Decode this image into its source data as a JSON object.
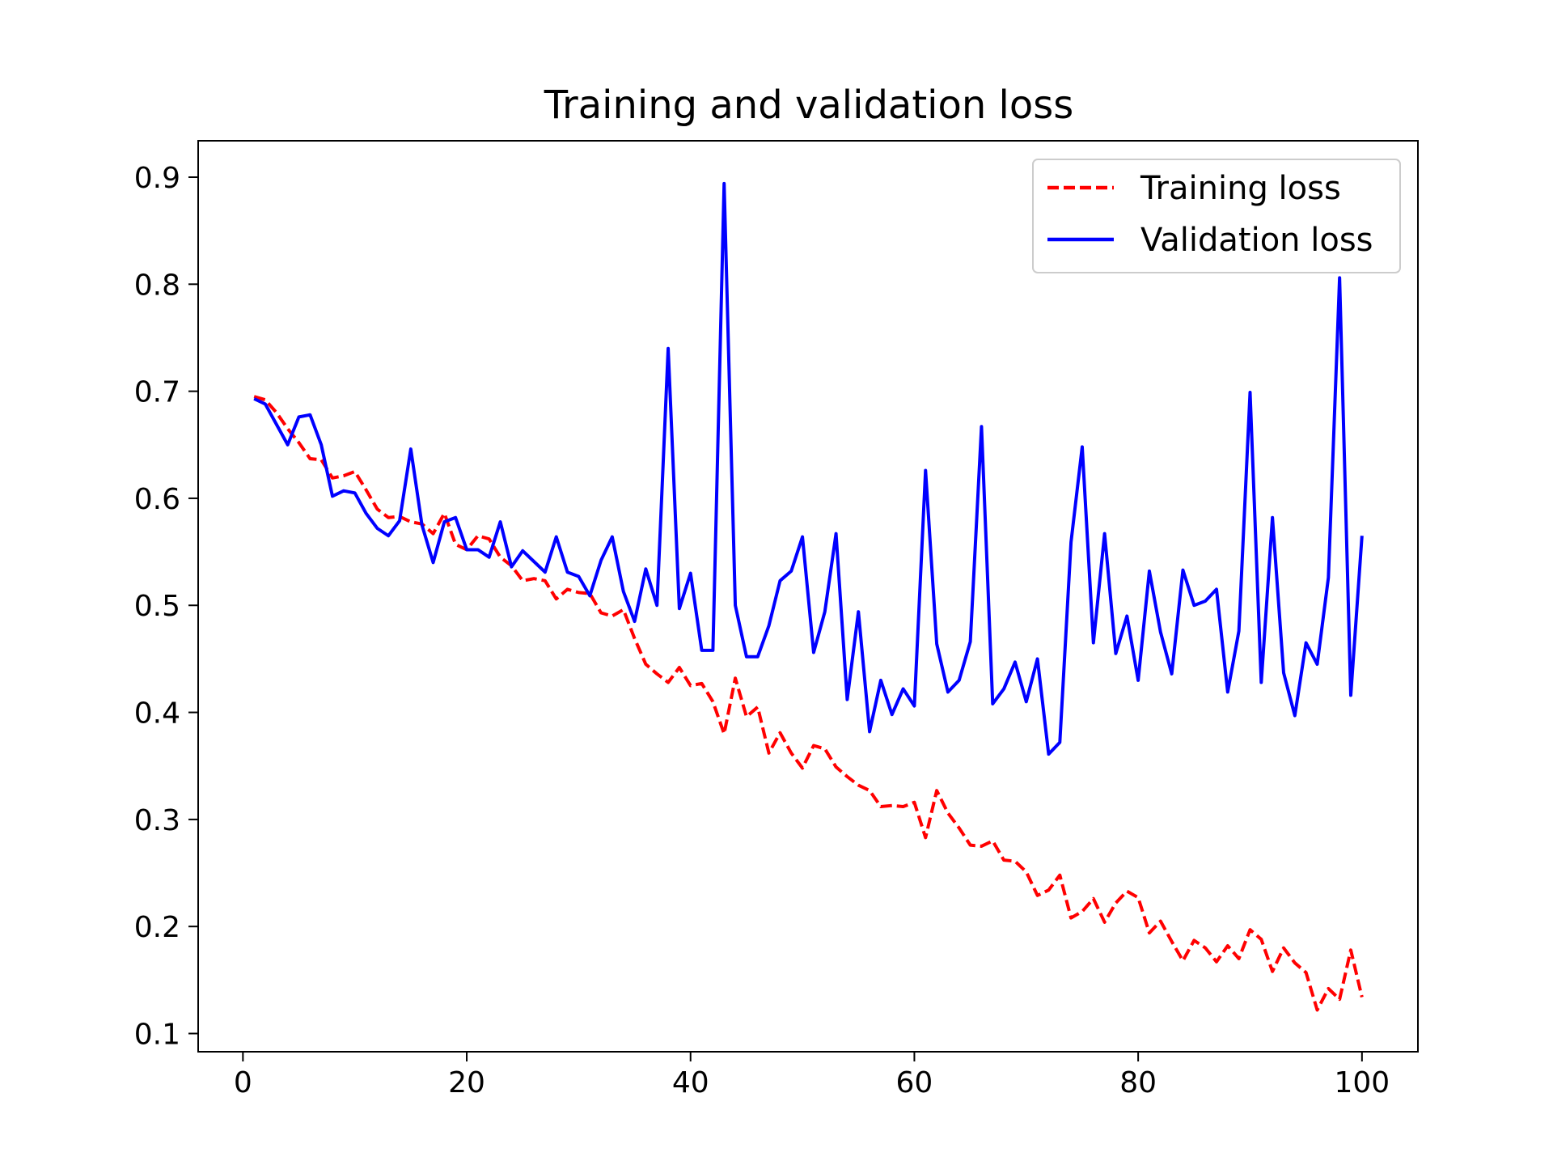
{
  "chart_data": {
    "type": "line",
    "title": "Training and validation loss",
    "xlabel": "",
    "ylabel": "",
    "xlim": [
      -4,
      105
    ],
    "ylim": [
      0.083,
      0.934
    ],
    "xticks": [
      0,
      20,
      40,
      60,
      80,
      100
    ],
    "yticks": [
      0.1,
      0.2,
      0.3,
      0.4,
      0.5,
      0.6,
      0.7,
      0.8,
      0.9
    ],
    "xtick_labels": [
      "0",
      "20",
      "40",
      "60",
      "80",
      "100"
    ],
    "ytick_labels": [
      "0.1",
      "0.2",
      "0.3",
      "0.4",
      "0.5",
      "0.6",
      "0.7",
      "0.8",
      "0.9"
    ],
    "grid": false,
    "legend": {
      "placement": "upper-right",
      "frame": true
    },
    "x": [
      1,
      2,
      3,
      4,
      5,
      6,
      7,
      8,
      9,
      10,
      11,
      12,
      13,
      14,
      15,
      16,
      17,
      18,
      19,
      20,
      21,
      22,
      23,
      24,
      25,
      26,
      27,
      28,
      29,
      30,
      31,
      32,
      33,
      34,
      35,
      36,
      37,
      38,
      39,
      40,
      41,
      42,
      43,
      44,
      45,
      46,
      47,
      48,
      49,
      50,
      51,
      52,
      53,
      54,
      55,
      56,
      57,
      58,
      59,
      60,
      61,
      62,
      63,
      64,
      65,
      66,
      67,
      68,
      69,
      70,
      71,
      72,
      73,
      74,
      75,
      76,
      77,
      78,
      79,
      80,
      81,
      82,
      83,
      84,
      85,
      86,
      87,
      88,
      89,
      90,
      91,
      92,
      93,
      94,
      95,
      96,
      97,
      98,
      99,
      100
    ],
    "series": [
      {
        "name": "Training loss",
        "color": "#ff0000",
        "style": "dashed",
        "values": [
          0.695,
          0.692,
          0.68,
          0.665,
          0.652,
          0.637,
          0.636,
          0.619,
          0.621,
          0.625,
          0.608,
          0.59,
          0.582,
          0.583,
          0.578,
          0.576,
          0.567,
          0.586,
          0.557,
          0.552,
          0.565,
          0.562,
          0.545,
          0.537,
          0.523,
          0.525,
          0.523,
          0.506,
          0.515,
          0.512,
          0.511,
          0.493,
          0.49,
          0.496,
          0.469,
          0.445,
          0.436,
          0.428,
          0.442,
          0.425,
          0.427,
          0.41,
          0.38,
          0.432,
          0.396,
          0.405,
          0.362,
          0.381,
          0.362,
          0.348,
          0.369,
          0.366,
          0.349,
          0.34,
          0.332,
          0.327,
          0.312,
          0.313,
          0.312,
          0.316,
          0.283,
          0.327,
          0.306,
          0.292,
          0.276,
          0.275,
          0.28,
          0.262,
          0.261,
          0.251,
          0.229,
          0.234,
          0.248,
          0.208,
          0.214,
          0.226,
          0.204,
          0.222,
          0.233,
          0.227,
          0.194,
          0.205,
          0.186,
          0.168,
          0.187,
          0.18,
          0.167,
          0.182,
          0.17,
          0.197,
          0.188,
          0.158,
          0.18,
          0.166,
          0.157,
          0.122,
          0.142,
          0.132,
          0.178,
          0.134
        ]
      },
      {
        "name": "Validation loss",
        "color": "#0000ff",
        "style": "solid",
        "values": [
          0.693,
          0.688,
          0.669,
          0.65,
          0.676,
          0.678,
          0.65,
          0.602,
          0.607,
          0.605,
          0.586,
          0.572,
          0.565,
          0.579,
          0.646,
          0.575,
          0.54,
          0.578,
          0.582,
          0.552,
          0.552,
          0.545,
          0.578,
          0.536,
          0.551,
          0.541,
          0.531,
          0.564,
          0.531,
          0.527,
          0.509,
          0.542,
          0.564,
          0.513,
          0.485,
          0.534,
          0.5,
          0.74,
          0.497,
          0.53,
          0.458,
          0.458,
          0.894,
          0.5,
          0.452,
          0.452,
          0.481,
          0.523,
          0.532,
          0.564,
          0.456,
          0.494,
          0.567,
          0.412,
          0.494,
          0.382,
          0.43,
          0.398,
          0.422,
          0.406,
          0.626,
          0.464,
          0.419,
          0.43,
          0.466,
          0.667,
          0.408,
          0.422,
          0.447,
          0.41,
          0.45,
          0.361,
          0.372,
          0.559,
          0.648,
          0.465,
          0.567,
          0.455,
          0.49,
          0.43,
          0.532,
          0.475,
          0.436,
          0.533,
          0.5,
          0.504,
          0.515,
          0.419,
          0.476,
          0.699,
          0.428,
          0.582,
          0.437,
          0.397,
          0.465,
          0.445,
          0.526,
          0.806,
          0.416,
          0.565
        ]
      }
    ]
  }
}
